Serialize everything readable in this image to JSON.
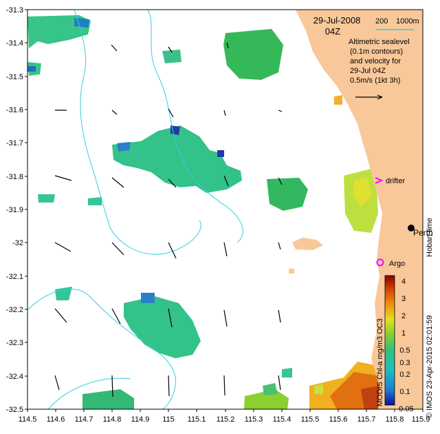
{
  "map": {
    "date": "29-Jul-2008",
    "time": "04Z",
    "scale_labels": [
      "200",
      "1000m"
    ],
    "legend_lines": [
      "Altimetric sealevel",
      "(0.1m contours)",
      "and velocity for",
      "29-Jul 04Z",
      "0.5m/s (1kt 3h)"
    ],
    "labels": {
      "drifter": "drifter",
      "perth": "Perth",
      "argo": "Argo",
      "hobart_time": "Hobart time"
    },
    "credit": "© IMOS 23-Apr-2015 02:01:59",
    "colorbar_title": "MODIS Chl-a mg/m3 OC3",
    "colorbar_ticks": [
      "4",
      "3",
      "2",
      "1",
      "0.5",
      "0.3",
      "0.2",
      "0.1",
      "0.05"
    ],
    "x_ticks": [
      "114.5",
      "114.6",
      "114.7",
      "114.8",
      "114.9",
      "115",
      "115.1",
      "115.2",
      "115.3",
      "115.4",
      "115.5",
      "115.6",
      "115.7",
      "115.8",
      "115.9"
    ],
    "y_ticks": [
      "-31.3",
      "-31.4",
      "-31.5",
      "-31.6",
      "-31.7",
      "-31.8",
      "-31.9",
      "-32",
      "-32.1",
      "-32.2",
      "-32.3",
      "-32.4",
      "-32.5"
    ],
    "colors": {
      "land": "#f8c89a",
      "bathymetry": "#30d0e0",
      "marker": "#ff00ff"
    }
  }
}
